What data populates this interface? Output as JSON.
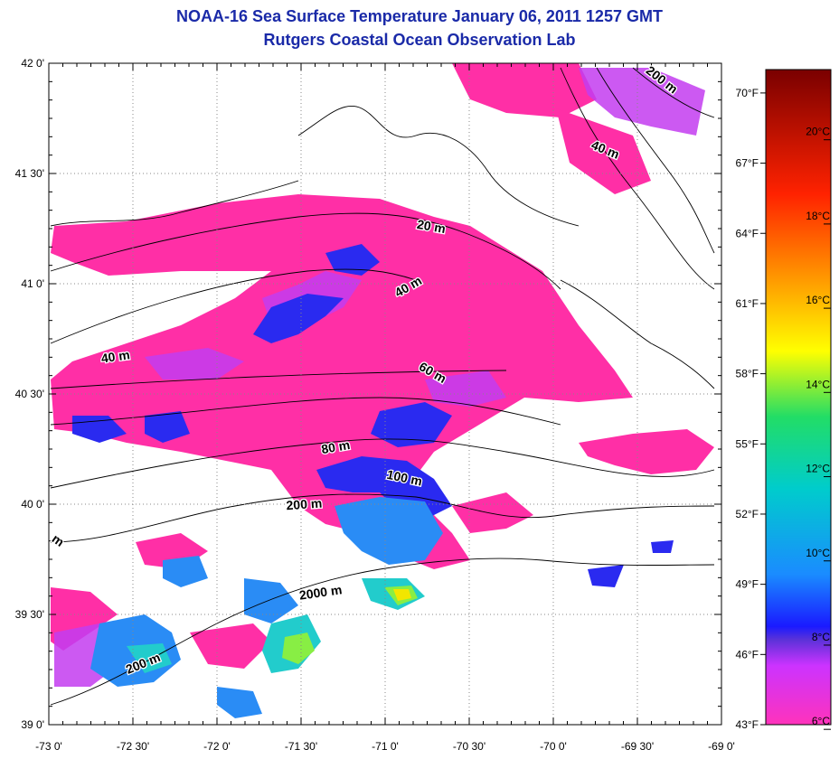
{
  "title": "NOAA-16 Sea Surface Temperature January 06, 2011 1257 GMT",
  "subtitle": "Rutgers Coastal Ocean Observation Lab",
  "map": {
    "lon_range": [
      -73.0,
      -69.0
    ],
    "lat_range": [
      39.0,
      42.0
    ],
    "grid": true,
    "lat_labels": [
      {
        "value": 42.0,
        "text": "42 0'"
      },
      {
        "value": 41.5,
        "text": "41 30'"
      },
      {
        "value": 41.0,
        "text": "41 0'"
      },
      {
        "value": 40.5,
        "text": "40 30'"
      },
      {
        "value": 40.0,
        "text": "40 0'"
      },
      {
        "value": 39.5,
        "text": "39 30'"
      },
      {
        "value": 39.0,
        "text": "39 0'"
      }
    ],
    "lon_labels": [
      {
        "value": -73.0,
        "text": "-73 0'"
      },
      {
        "value": -72.5,
        "text": "-72 30'"
      },
      {
        "value": -72.0,
        "text": "-72 0'"
      },
      {
        "value": -71.5,
        "text": "-71 30'"
      },
      {
        "value": -71.0,
        "text": "-71 0'"
      },
      {
        "value": -70.5,
        "text": "-70 30'"
      },
      {
        "value": -70.0,
        "text": "-70 0'"
      },
      {
        "value": -69.5,
        "text": "-69 30'"
      },
      {
        "value": -69.0,
        "text": "-69 0'"
      }
    ],
    "contour_labels": [
      {
        "text": "20 m",
        "lon": -70.73,
        "lat": 41.24,
        "rot": 10
      },
      {
        "text": "40 m",
        "lon": -70.85,
        "lat": 40.97,
        "rot": -30
      },
      {
        "text": "40 m",
        "lon": -72.6,
        "lat": 40.65,
        "rot": -8
      },
      {
        "text": "40 m",
        "lon": -69.7,
        "lat": 41.59,
        "rot": 22
      },
      {
        "text": "60 m",
        "lon": -70.73,
        "lat": 40.58,
        "rot": 30
      },
      {
        "text": "80 m",
        "lon": -71.29,
        "lat": 40.24,
        "rot": -10
      },
      {
        "text": "100 m",
        "lon": -70.89,
        "lat": 40.1,
        "rot": 12
      },
      {
        "text": "200 m",
        "lon": -71.48,
        "lat": 39.98,
        "rot": -4
      },
      {
        "text": "2000 m",
        "lon": -71.38,
        "lat": 39.58,
        "rot": -8
      },
      {
        "text": "200 m",
        "lon": -72.43,
        "lat": 39.26,
        "rot": -22
      },
      {
        "text": "200 m",
        "lon": -69.37,
        "lat": 41.91,
        "rot": 38
      },
      {
        "text": "m",
        "lon": -72.96,
        "lat": 39.82,
        "rot": 35
      }
    ]
  },
  "colorbar": {
    "range_f": [
      43,
      71
    ],
    "f_ticks": [
      {
        "value": 70,
        "text": "70°F"
      },
      {
        "value": 67,
        "text": "67°F"
      },
      {
        "value": 64,
        "text": "64°F"
      },
      {
        "value": 61,
        "text": "61°F"
      },
      {
        "value": 58,
        "text": "58°F"
      },
      {
        "value": 55,
        "text": "55°F"
      },
      {
        "value": 52,
        "text": "52°F"
      },
      {
        "value": 49,
        "text": "49°F"
      },
      {
        "value": 46,
        "text": "46°F"
      },
      {
        "value": 43,
        "text": "43°F"
      }
    ],
    "c_ticks": [
      {
        "value": 20,
        "text": "20°C"
      },
      {
        "value": 18,
        "text": "18°C"
      },
      {
        "value": 16,
        "text": "16°C"
      },
      {
        "value": 14,
        "text": "14°C"
      },
      {
        "value": 12,
        "text": "12°C"
      },
      {
        "value": 10,
        "text": "10°C"
      },
      {
        "value": 8,
        "text": "8°C"
      },
      {
        "value": 6,
        "text": "6°C"
      }
    ]
  },
  "colors": {
    "title": "#1a2aa8",
    "cold": "#ff2fa6",
    "purple": "#c33cf0",
    "blue": "#2a2af0",
    "lightblue": "#2a8cf5",
    "cyan": "#22cccc",
    "green": "#88ee44",
    "yellow": "#f2e600"
  }
}
